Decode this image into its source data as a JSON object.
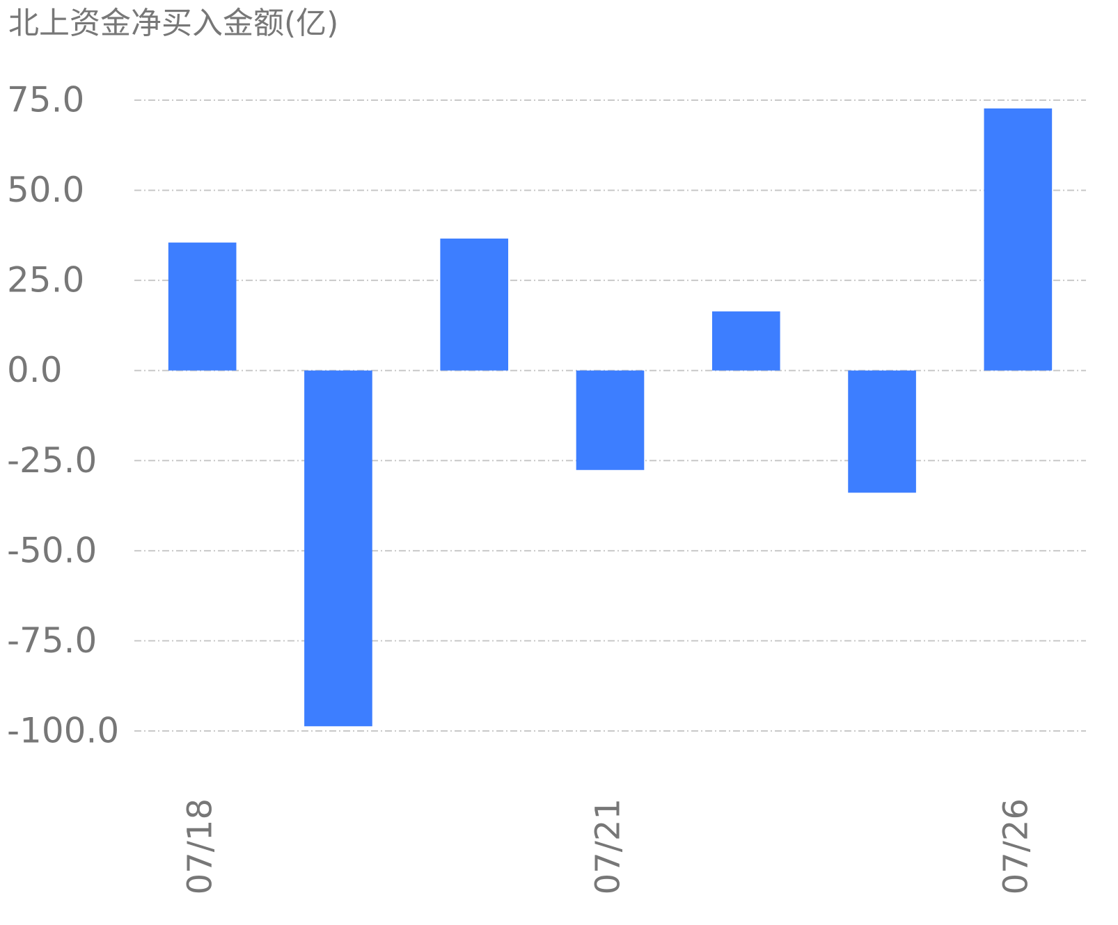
{
  "chart_data": {
    "type": "bar",
    "title": "北上资金净买入金额(亿)",
    "categories": [
      "07/18",
      null,
      null,
      "07/21",
      null,
      null,
      "07/26"
    ],
    "values": [
      35.5,
      -98.7,
      36.6,
      -27.6,
      16.4,
      -33.9,
      72.7
    ],
    "color": "#3d7eff",
    "ylim": [
      -100,
      75
    ],
    "yticks": [
      {
        "value": 75,
        "label": "75.0"
      },
      {
        "value": 50,
        "label": "50.0"
      },
      {
        "value": 25,
        "label": "25.0"
      },
      {
        "value": 0,
        "label": "0.0"
      },
      {
        "value": -25,
        "label": "-25.0"
      },
      {
        "value": -50,
        "label": "-50.0"
      },
      {
        "value": -75,
        "label": "-75.0"
      },
      {
        "value": -100,
        "label": "-100.0"
      }
    ],
    "grid": true
  }
}
